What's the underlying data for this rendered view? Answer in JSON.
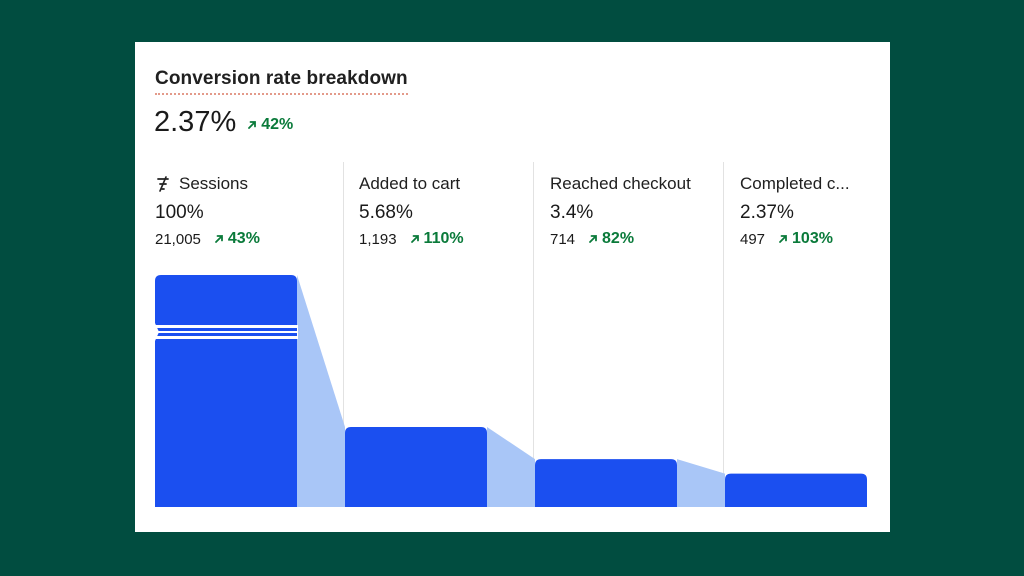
{
  "chart_data": {
    "type": "bar",
    "title": "Conversion rate breakdown",
    "headline_value": "2.37%",
    "headline_change": "42%",
    "categories": [
      "Sessions",
      "Added to cart",
      "Reached checkout",
      "Completed c..."
    ],
    "percent_labels": [
      "100%",
      "5.68%",
      "3.4%",
      "2.37%"
    ],
    "count_labels": [
      "21,005",
      "1,193",
      "714",
      "497"
    ],
    "change_labels": [
      "43%",
      "110%",
      "82%",
      "103%"
    ],
    "values": [
      21005,
      1193,
      714,
      497
    ],
    "bar_color": "#1b4ff0",
    "connector_color": "#a9c6f7",
    "axis_break_on_first_bar": true
  },
  "colors": {
    "background": "#014d40",
    "positive": "#0a7a3a"
  },
  "icons": {
    "first_stage_icon": "funnel-icon",
    "change_icon": "arrow-up-right-icon"
  }
}
